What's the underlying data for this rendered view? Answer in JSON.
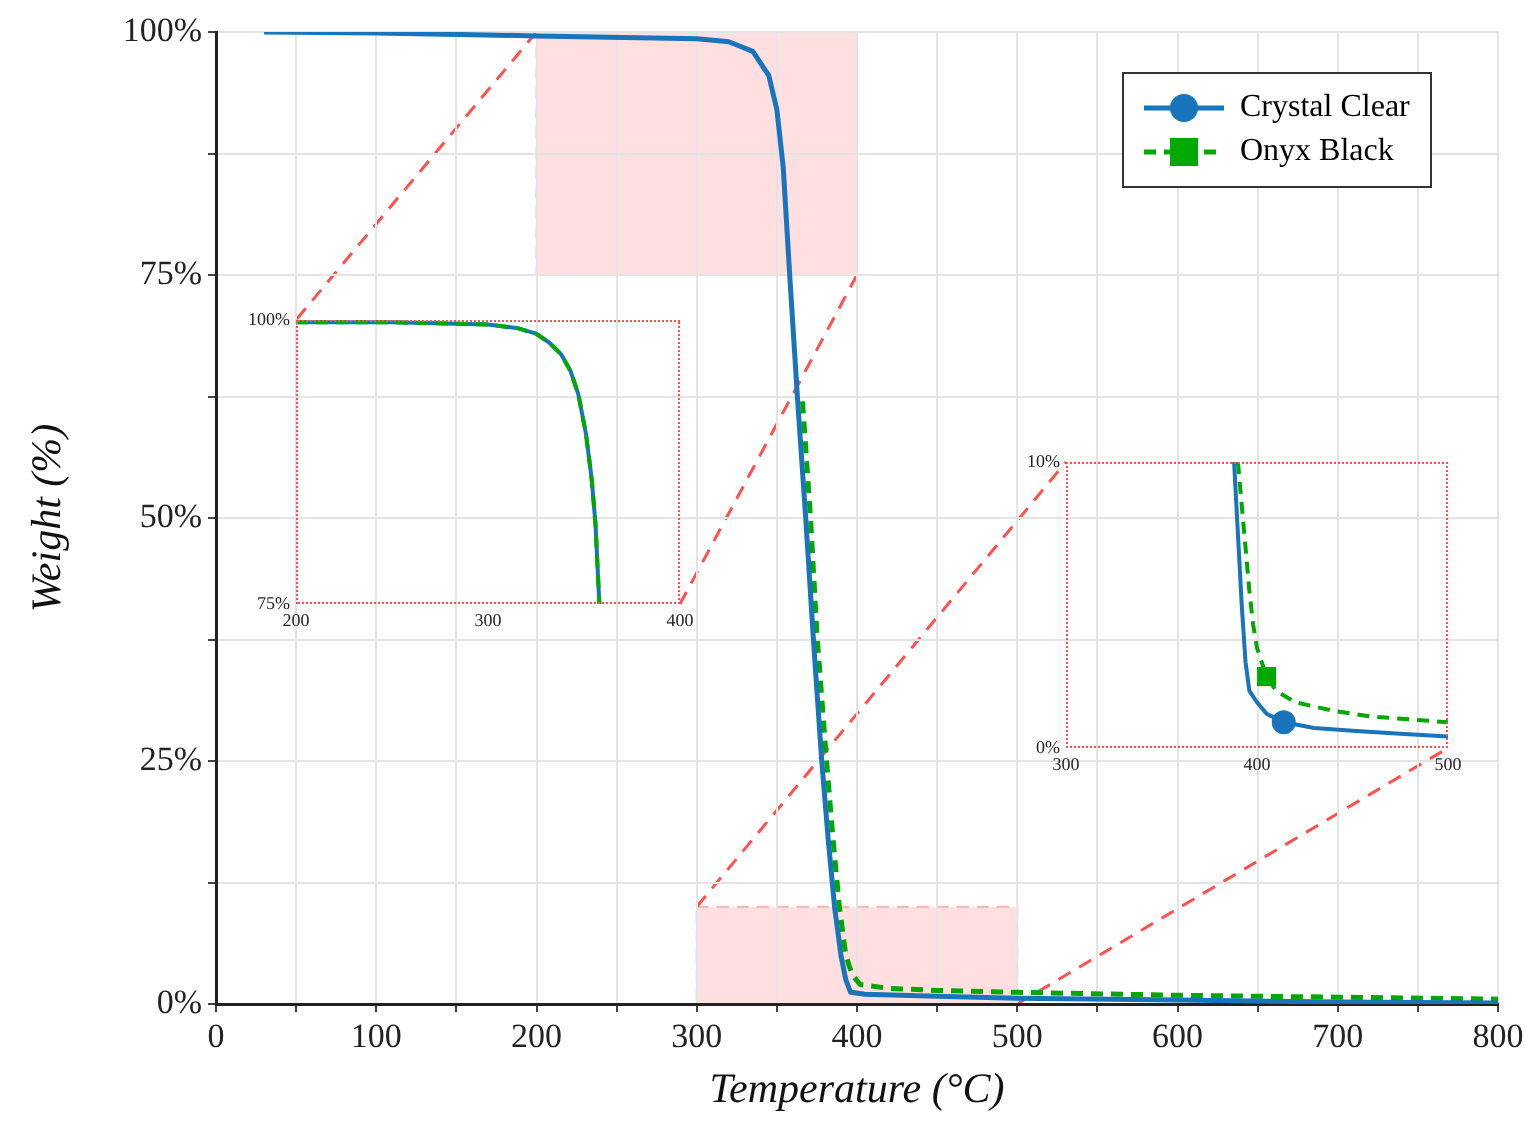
{
  "chart_data": [
    {
      "type": "line",
      "xlabel": "Temperature (°C)",
      "ylabel": "Weight (%)",
      "xlim": [
        0,
        800
      ],
      "ylim": [
        0,
        100
      ],
      "xticks": [
        0,
        {
          "value": 50,
          "label": null
        },
        100,
        {
          "value": 150,
          "label": null
        },
        200,
        {
          "value": 250,
          "label": null
        },
        300,
        {
          "value": 350,
          "label": null
        },
        400,
        {
          "value": 450,
          "label": null
        },
        500,
        {
          "value": 550,
          "label": null
        },
        600,
        {
          "value": 650,
          "label": null
        },
        700,
        {
          "value": 750,
          "label": null
        },
        800
      ],
      "yticks": [
        {
          "value": 0,
          "label": "0%"
        },
        {
          "value": 12.5,
          "label": null
        },
        {
          "value": 25,
          "label": "25%"
        },
        {
          "value": 37.5,
          "label": null
        },
        {
          "value": 50,
          "label": "50%"
        },
        {
          "value": 62.5,
          "label": null
        },
        {
          "value": 75,
          "label": "75%"
        },
        {
          "value": 87.5,
          "label": null
        },
        {
          "value": 100,
          "label": "100%"
        }
      ],
      "grid": true,
      "legend": "top right",
      "series": [
        {
          "name": "Crystal Clear",
          "color": "#1874bb",
          "line_style": "solid",
          "x": [
            30,
            100,
            200,
            300,
            320,
            335,
            345,
            350,
            354,
            358,
            363,
            368,
            373,
            378,
            382,
            386,
            390,
            393,
            396,
            405,
            450,
            500,
            600,
            700,
            800
          ],
          "values": [
            100,
            99.9,
            99.6,
            99.3,
            99,
            98,
            95.5,
            92,
            86,
            75,
            62,
            50,
            37,
            25,
            17,
            10,
            5,
            2.5,
            1.2,
            1,
            0.8,
            0.6,
            0.4,
            0.2,
            0.1
          ]
        },
        {
          "name": "Onyx Black",
          "color": "#00a800",
          "line_style": "dashed",
          "x": [
            366,
            371,
            375,
            381,
            385,
            389,
            393,
            397,
            402,
            420,
            450,
            500,
            600,
            700,
            800
          ],
          "values": [
            62,
            50,
            38,
            25,
            17,
            10,
            5,
            3,
            2,
            1.6,
            1.4,
            1.2,
            0.9,
            0.7,
            0.5
          ]
        }
      ]
    },
    {
      "type": "line",
      "xlim": [
        200,
        400
      ],
      "ylim": [
        75,
        100
      ],
      "xticks": [
        200,
        300,
        400
      ],
      "yticks": [
        {
          "value": 75,
          "label": "75%"
        },
        {
          "value": 100,
          "label": "100%"
        }
      ],
      "series": [
        {
          "color": "#00a800",
          "line_style": "dashed",
          "x": [
            200,
            250,
            300,
            315,
            325,
            332,
            338,
            343,
            347,
            351,
            354,
            356,
            358
          ],
          "values": [
            99.8,
            99.8,
            99.6,
            99.3,
            98.8,
            98,
            97,
            95.5,
            93.5,
            90,
            86,
            82,
            75
          ]
        },
        {
          "color": "#1874bb",
          "line_style": "solid",
          "x": [
            200,
            250,
            300,
            315,
            325,
            332,
            338,
            343,
            347,
            351,
            354,
            356,
            358
          ],
          "values": [
            99.8,
            99.8,
            99.6,
            99.3,
            98.8,
            98,
            97,
            95.5,
            93.5,
            90,
            86,
            82,
            75
          ]
        }
      ]
    },
    {
      "type": "line",
      "xlim": [
        300,
        500
      ],
      "ylim": [
        0,
        10
      ],
      "xticks": [
        300,
        400,
        500
      ],
      "yticks": [
        {
          "value": 0,
          "label": "0%"
        },
        {
          "value": 10,
          "label": "10%"
        }
      ],
      "series": [
        {
          "color": "#1874bb",
          "line_style": "solid",
          "x": [
            388,
            390,
            392,
            394,
            396,
            400,
            405,
            414,
            430,
            450,
            475,
            500
          ],
          "values": [
            10,
            7.5,
            5,
            3,
            2,
            1.6,
            1.2,
            0.9,
            0.7,
            0.6,
            0.5,
            0.4
          ]
        },
        {
          "color": "#00a800",
          "line_style": "dashed",
          "x": [
            390,
            392,
            394,
            396,
            398,
            400,
            403,
            405,
            410,
            420,
            440,
            460,
            500
          ],
          "values": [
            10,
            8.5,
            7,
            5.5,
            4.3,
            3.5,
            2.9,
            2.5,
            2,
            1.6,
            1.3,
            1.1,
            0.9
          ]
        },
        {
          "type": "scatter",
          "color": "#1874bb",
          "marker": "circle",
          "x": [
            414
          ],
          "values": [
            0.9
          ]
        },
        {
          "type": "scatter",
          "color": "#00a800",
          "marker": "square",
          "x": [
            405
          ],
          "values": [
            2.5
          ]
        }
      ]
    }
  ]
}
